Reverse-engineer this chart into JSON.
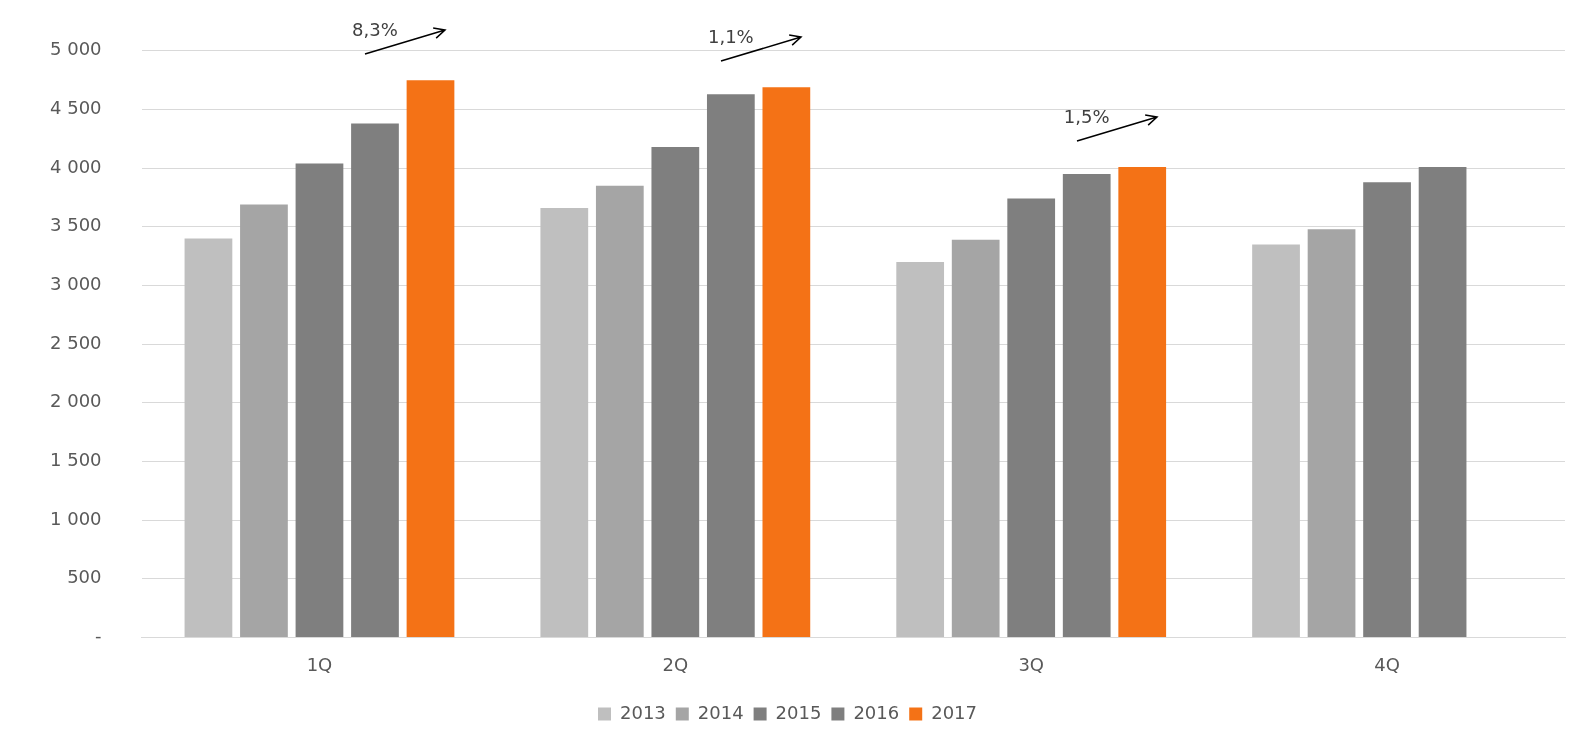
{
  "chart_data": {
    "type": "bar",
    "categories": [
      "1Q",
      "2Q",
      "3Q",
      "4Q"
    ],
    "series": [
      {
        "name": "2013",
        "color": "#bfbfbf",
        "values": [
          3400,
          3660,
          3200,
          3350
        ]
      },
      {
        "name": "2014",
        "color": "#a5a5a5",
        "values": [
          3690,
          3850,
          3390,
          3480
        ]
      },
      {
        "name": "2015",
        "color": "#7f7f7f",
        "values": [
          4040,
          4180,
          3740,
          3880
        ]
      },
      {
        "name": "2016",
        "color": "#7f7f7f",
        "values": [
          4380,
          4630,
          3950,
          4010
        ]
      },
      {
        "name": "2017",
        "color": "#f47216",
        "values": [
          4750,
          4690,
          4010,
          null
        ]
      }
    ],
    "ylim": [
      0,
      5000
    ],
    "yticks": [
      {
        "value": 0,
        "label": "-"
      },
      500,
      {
        "value": 1000,
        "label": "1 000"
      },
      {
        "value": 1500,
        "label": "1 500"
      },
      {
        "value": 2000,
        "label": "2 000"
      },
      {
        "value": 2500,
        "label": "2 500"
      },
      {
        "value": 3000,
        "label": "3 000"
      },
      {
        "value": 3500,
        "label": "3 500"
      },
      {
        "value": 4000,
        "label": "4 000"
      },
      {
        "value": 4500,
        "label": "4 500"
      },
      {
        "value": 5000,
        "label": "5 000"
      }
    ],
    "grid": "y",
    "legend": "bottom",
    "annotations": [
      "8,3%",
      "1,1%",
      "1,5%"
    ]
  }
}
